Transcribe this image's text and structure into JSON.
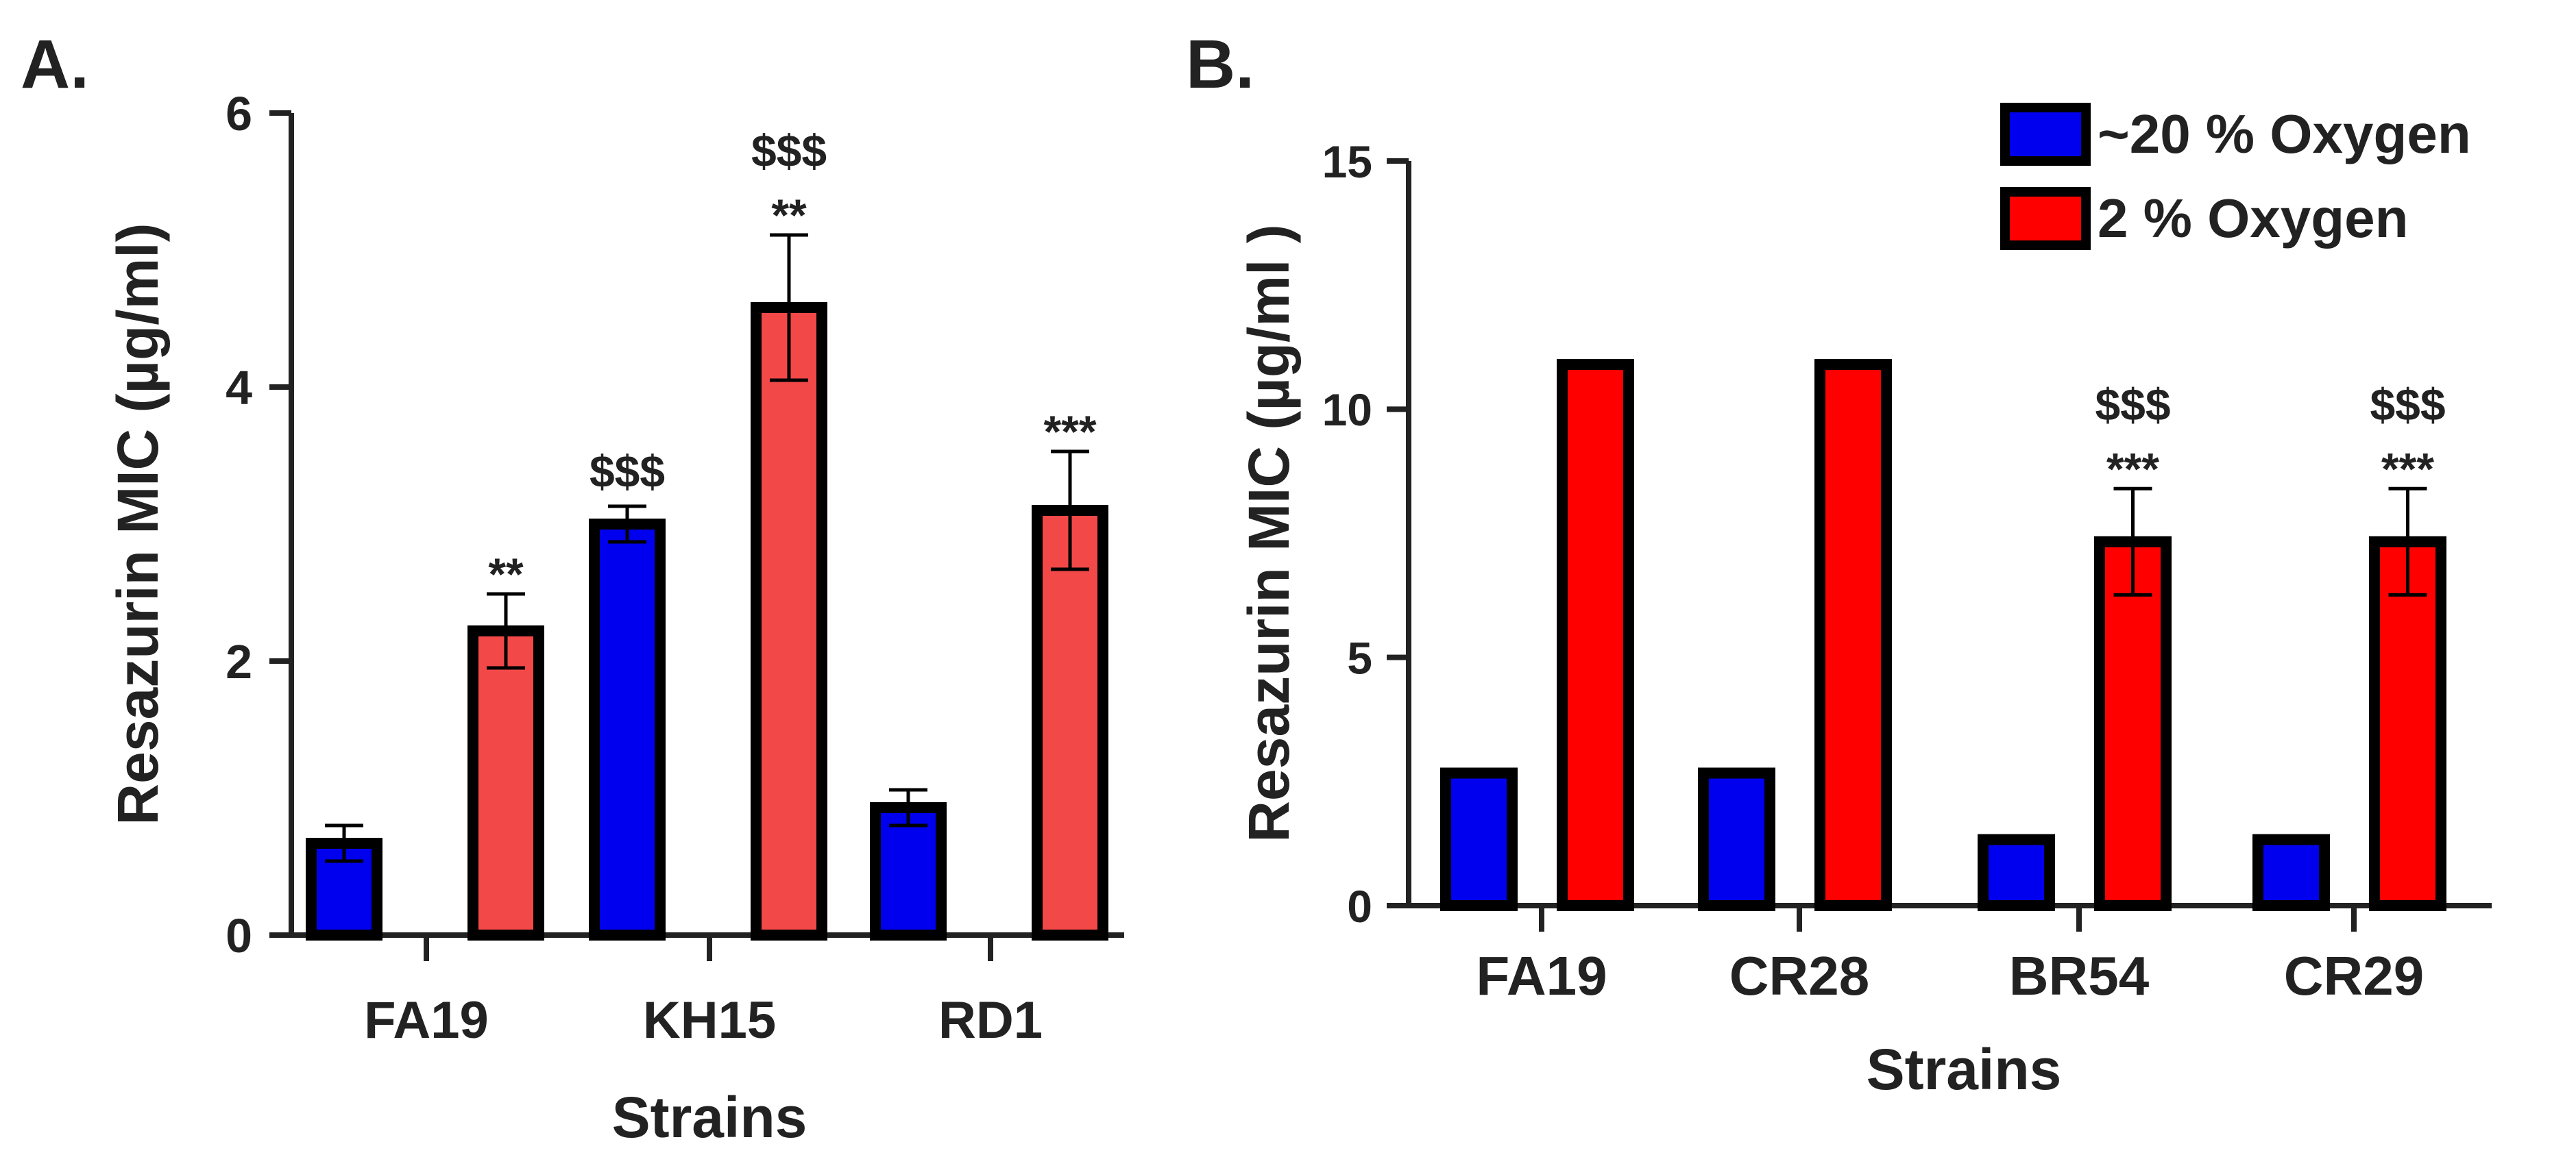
{
  "colors": {
    "low_oxygen_bar": "#0000ee",
    "panel_a_high_bar": "#f24848",
    "panel_b_high_bar": "#ff0000",
    "axis": "#222222",
    "outline": "#000000"
  },
  "legend": {
    "entries": [
      "~20 % Oxygen",
      " 2 % Oxygen"
    ]
  },
  "chart_data": [
    {
      "type": "bar",
      "panel_label": "A.",
      "xlabel": "Strains",
      "ylabel": "Resazurin  MIC  (µg/ml)",
      "ylim": [
        0,
        6
      ],
      "yticks": [
        0,
        2,
        4,
        6
      ],
      "grid": false,
      "categories": [
        "FA19",
        "KH15",
        "RD1"
      ],
      "series": [
        {
          "name": "~20 % Oxygen",
          "values": [
            0.67,
            3.0,
            0.93
          ],
          "errors": [
            0.13,
            0.13,
            0.13
          ],
          "annotations": [
            "",
            "$$$",
            ""
          ]
        },
        {
          "name": "2 % Oxygen",
          "values": [
            2.22,
            4.58,
            3.1
          ],
          "errors": [
            0.27,
            0.53,
            0.43
          ],
          "annotations": [
            "**",
            "**",
            "***"
          ],
          "annotations_top": [
            "",
            "$$$",
            ""
          ]
        }
      ]
    },
    {
      "type": "bar",
      "panel_label": "B.",
      "xlabel": "Strains",
      "ylabel": "Resazurin  MIC  (µg/ml )",
      "ylim": [
        0,
        15
      ],
      "yticks": [
        0,
        5,
        10,
        15
      ],
      "grid": false,
      "legend_position": "top-right",
      "categories": [
        "FA19",
        "CR28",
        "BR54",
        "CR29"
      ],
      "series": [
        {
          "name": "~20 % Oxygen",
          "values": [
            2.67,
            2.67,
            1.33,
            1.33
          ],
          "errors": [
            0,
            0,
            0,
            0
          ],
          "annotations": [
            "",
            "",
            "",
            ""
          ]
        },
        {
          "name": "2 % Oxygen",
          "values": [
            10.9,
            10.9,
            7.33,
            7.33
          ],
          "errors": [
            0,
            0,
            1.07,
            1.07
          ],
          "annotations": [
            "",
            "",
            "***",
            "***"
          ],
          "annotations_top": [
            "",
            "",
            "$$$",
            "$$$"
          ]
        }
      ]
    }
  ]
}
